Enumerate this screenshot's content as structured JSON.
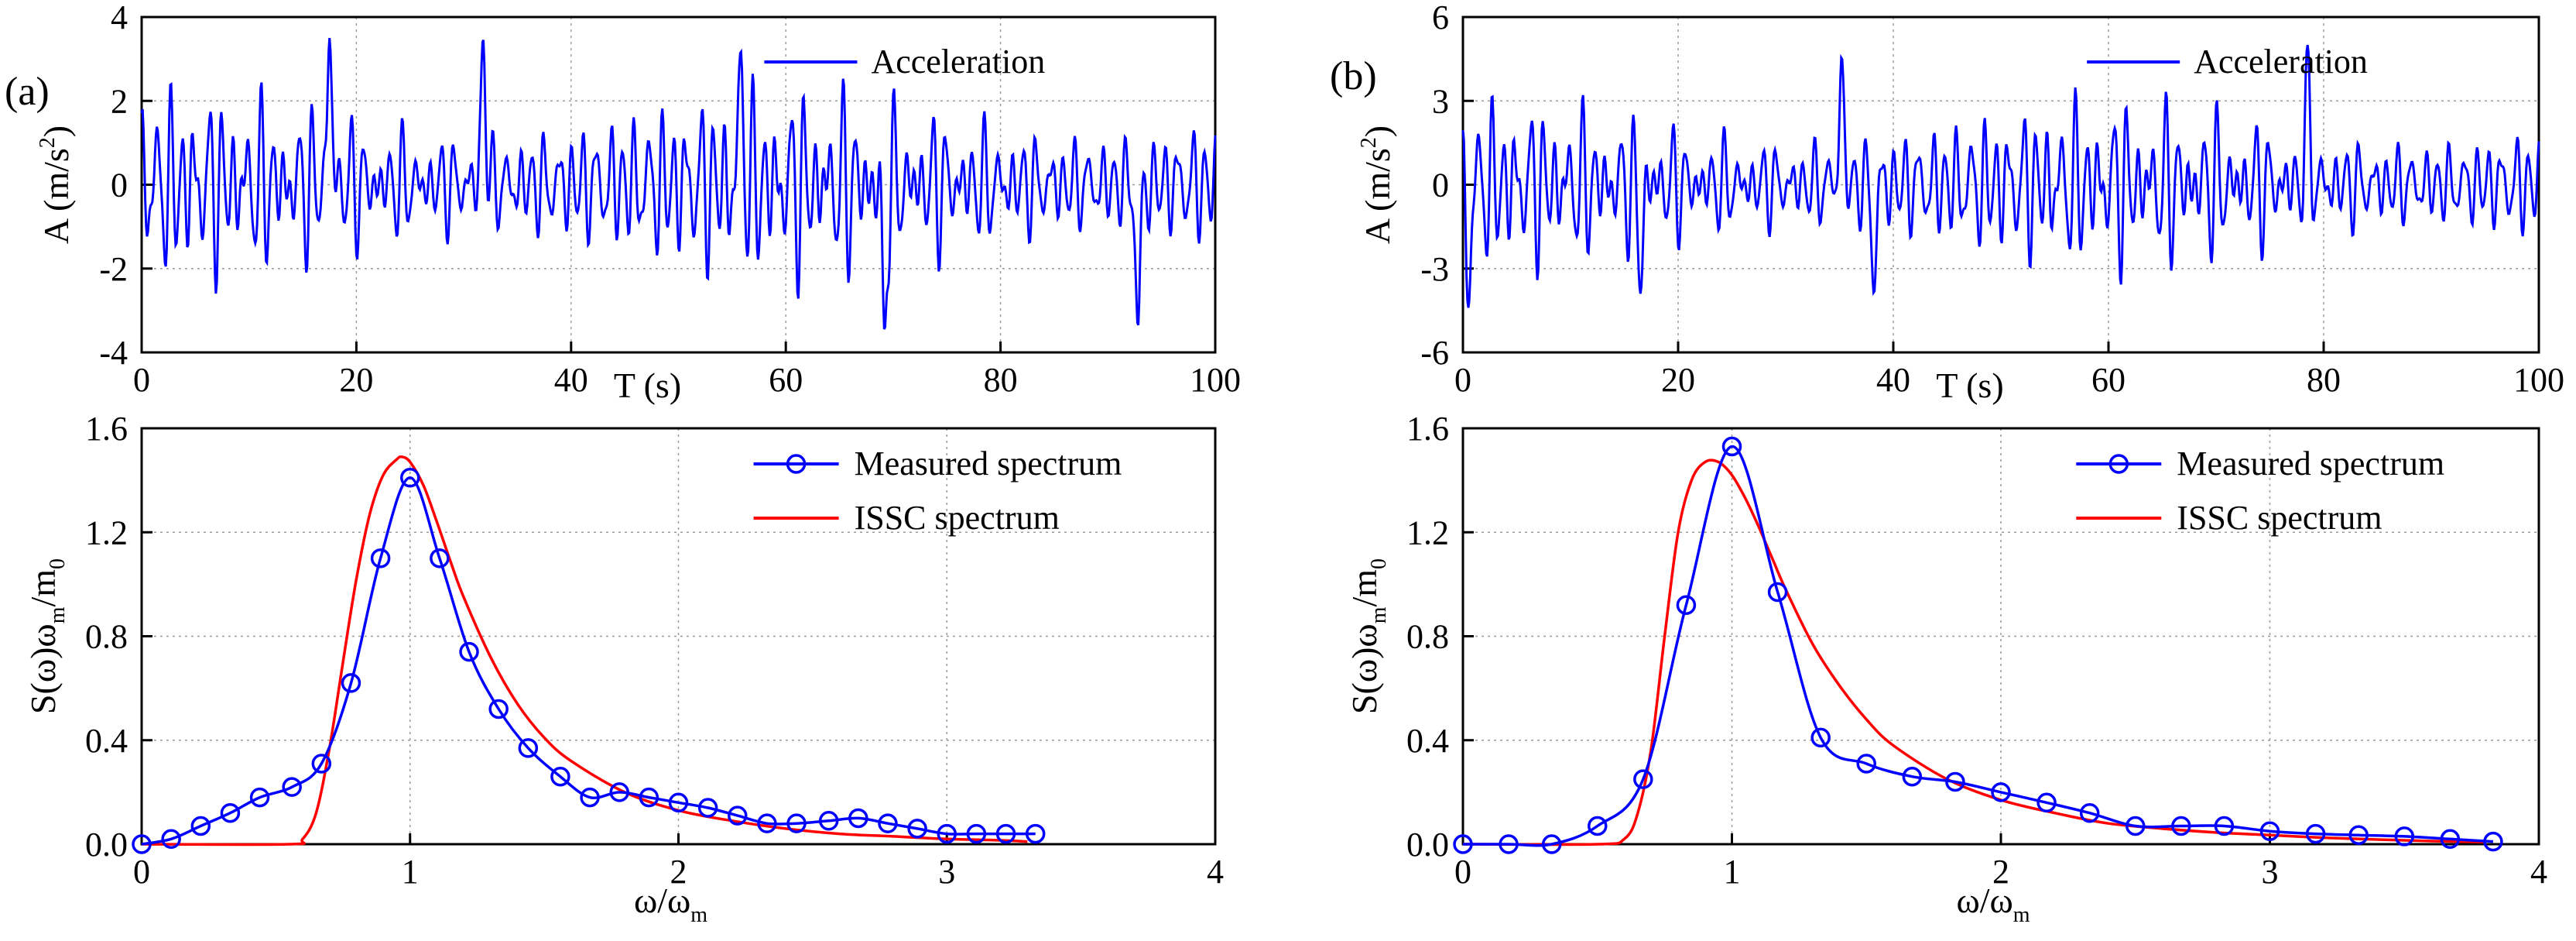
{
  "panels": {
    "a": {
      "label": "(a)"
    },
    "b": {
      "label": "(b)"
    }
  },
  "chart_data": [
    {
      "id": "a-top",
      "type": "line",
      "title": "",
      "legend": [
        "Acceleration"
      ],
      "legend_position": "top-right",
      "xlabel": "T (s)",
      "ylabel": "A (m/s²)",
      "ylabel_main": "A (m/s",
      "ylabel_sup": "2",
      "ylabel_tail": ")",
      "xlim": [
        0,
        100
      ],
      "ylim": [
        -4,
        4
      ],
      "xticks": [
        "0",
        "20",
        "40",
        "60",
        "80",
        "100"
      ],
      "yticks": [
        "4",
        "2",
        "0",
        "-2",
        "-4"
      ],
      "grid": true,
      "color": "#0000ff",
      "signal": {
        "amplitude": 3.5,
        "peak_times": [
          17.5,
          31.8,
          55.8,
          69.2,
          92.8
        ],
        "peak_values": [
          3.5,
          3.5,
          3.2,
          -3.5,
          -3.4
        ]
      }
    },
    {
      "id": "a-bottom",
      "type": "line",
      "title": "",
      "xlabel": "ω/ω_m",
      "xlabel_main": "ω/ω",
      "xlabel_sub": "m",
      "ylabel": "S(ω)ω_m/m_0",
      "ylabel_a": "S(ω)ω",
      "ylabel_sub1": "m",
      "ylabel_b": "/m",
      "ylabel_sub2": "0",
      "xlim": [
        0,
        4
      ],
      "ylim": [
        0,
        1.6
      ],
      "xticks": [
        "0",
        "1",
        "2",
        "3",
        "4"
      ],
      "yticks": [
        "1.6",
        "1.2",
        "0.8",
        "0.4",
        "0.0"
      ],
      "grid": true,
      "legend_position": "top-right",
      "series": [
        {
          "name": "Measured spectrum",
          "color": "#0000ff",
          "marker": "circle",
          "x": [
            0.0,
            0.11,
            0.22,
            0.33,
            0.44,
            0.56,
            0.67,
            0.78,
            0.89,
            1.0,
            1.11,
            1.22,
            1.33,
            1.44,
            1.56,
            1.67,
            1.78,
            1.89,
            2.0,
            2.11,
            2.22,
            2.33,
            2.44,
            2.56,
            2.67,
            2.78,
            2.89,
            3.0,
            3.11,
            3.22,
            3.33
          ],
          "y": [
            0.0,
            0.02,
            0.07,
            0.12,
            0.18,
            0.22,
            0.31,
            0.62,
            1.1,
            1.41,
            1.1,
            0.74,
            0.52,
            0.37,
            0.26,
            0.18,
            0.2,
            0.18,
            0.16,
            0.14,
            0.11,
            0.08,
            0.08,
            0.09,
            0.1,
            0.08,
            0.06,
            0.04,
            0.04,
            0.04,
            0.04
          ]
        },
        {
          "name": "ISSC spectrum",
          "color": "#ff0000",
          "marker": "none",
          "x": [
            0.55,
            0.6,
            0.65,
            0.7,
            0.75,
            0.8,
            0.85,
            0.9,
            0.95,
            0.97,
            1.0,
            1.05,
            1.1,
            1.15,
            1.2,
            1.3,
            1.4,
            1.5,
            1.6,
            1.8,
            2.0,
            2.2,
            2.4,
            2.6,
            2.8,
            3.0,
            3.2,
            3.3
          ],
          "y": [
            0.0,
            0.02,
            0.12,
            0.37,
            0.7,
            1.02,
            1.27,
            1.42,
            1.48,
            1.49,
            1.47,
            1.38,
            1.24,
            1.09,
            0.95,
            0.72,
            0.54,
            0.41,
            0.32,
            0.2,
            0.13,
            0.09,
            0.06,
            0.04,
            0.03,
            0.02,
            0.015,
            0.01
          ]
        }
      ]
    },
    {
      "id": "b-top",
      "type": "line",
      "title": "",
      "legend": [
        "Acceleration"
      ],
      "legend_position": "top-right",
      "xlabel": "T (s)",
      "ylabel": "A (m/s²)",
      "ylabel_main": "A (m/s",
      "ylabel_sup": "2",
      "ylabel_tail": ")",
      "xlim": [
        0,
        100
      ],
      "ylim": [
        -6,
        6
      ],
      "xticks": [
        "0",
        "20",
        "40",
        "60",
        "80",
        "100"
      ],
      "yticks": [
        "6",
        "3",
        "0",
        "-3",
        "-6"
      ],
      "grid": true,
      "color": "#0000ff",
      "signal": {
        "amplitude": 4.6,
        "peak_times": [
          0.5,
          16.5,
          35.2,
          38.2,
          78.5
        ],
        "peak_values": [
          -4.4,
          -3.9,
          4.6,
          -3.9,
          5.0
        ]
      }
    },
    {
      "id": "b-bottom",
      "type": "line",
      "title": "",
      "xlabel": "ω/ω_m",
      "xlabel_main": "ω/ω",
      "xlabel_sub": "m",
      "ylabel": "S(ω)ω_m/m_0",
      "ylabel_a": "S(ω)ω",
      "ylabel_sub1": "m",
      "ylabel_b": "/m",
      "ylabel_sub2": "0",
      "xlim": [
        0,
        4
      ],
      "ylim": [
        0,
        1.6
      ],
      "xticks": [
        "0",
        "1",
        "2",
        "3",
        "4"
      ],
      "yticks": [
        "1.6",
        "1.2",
        "0.8",
        "0.4",
        "0.0"
      ],
      "grid": true,
      "legend_position": "top-right",
      "series": [
        {
          "name": "Measured spectrum",
          "color": "#0000ff",
          "marker": "circle",
          "x": [
            0.0,
            0.17,
            0.33,
            0.5,
            0.67,
            0.83,
            1.0,
            1.17,
            1.33,
            1.5,
            1.67,
            1.83,
            2.0,
            2.17,
            2.33,
            2.5,
            2.67,
            2.83,
            3.0,
            3.17,
            3.33,
            3.5,
            3.67,
            3.83
          ],
          "y": [
            0.0,
            0.0,
            0.0,
            0.07,
            0.25,
            0.92,
            1.53,
            0.97,
            0.41,
            0.31,
            0.26,
            0.24,
            0.2,
            0.16,
            0.12,
            0.07,
            0.07,
            0.07,
            0.05,
            0.04,
            0.035,
            0.03,
            0.02,
            0.01
          ]
        },
        {
          "name": "ISSC spectrum",
          "color": "#ff0000",
          "marker": "none",
          "x": [
            0.5,
            0.6,
            0.65,
            0.7,
            0.75,
            0.8,
            0.85,
            0.9,
            0.95,
            1.0,
            1.05,
            1.1,
            1.15,
            1.2,
            1.3,
            1.4,
            1.5,
            1.6,
            1.8,
            2.0,
            2.2,
            2.4,
            2.6,
            2.8,
            3.0,
            3.2,
            3.4,
            3.6,
            3.8
          ],
          "y": [
            0.0,
            0.02,
            0.12,
            0.37,
            0.8,
            1.2,
            1.4,
            1.47,
            1.47,
            1.42,
            1.33,
            1.22,
            1.1,
            0.98,
            0.77,
            0.61,
            0.48,
            0.38,
            0.25,
            0.17,
            0.12,
            0.08,
            0.06,
            0.045,
            0.035,
            0.025,
            0.018,
            0.012,
            0.008
          ]
        }
      ]
    }
  ]
}
